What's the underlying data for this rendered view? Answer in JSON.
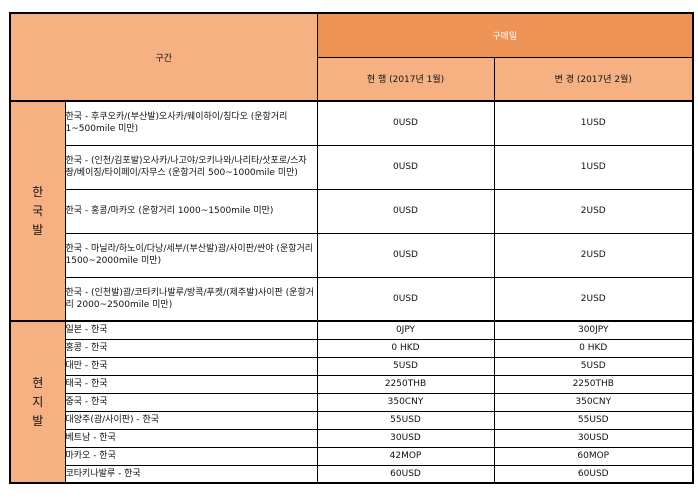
{
  "table": {
    "headers": {
      "section": "구간",
      "purchase_date": "구매일",
      "current": "현 행 (2017년 1월)",
      "changed": "변 경 (2017년 2월)"
    },
    "groups": [
      {
        "label_chars": [
          "한",
          "국",
          "발"
        ],
        "rows": [
          {
            "route": "한국 - 후쿠오카/(부산발)오사카/웨이하이/칭다오 (운항거리 1~500mile 미만)",
            "current": "0USD",
            "changed": "1USD"
          },
          {
            "route": "한국 - (인천/김포발)오사카/나고야/오키나와/나리타/삿포로/스자좡/베이징/타이페이/자무스 (운항거리 500~1000mile 미만)",
            "current": "0USD",
            "changed": "1USD"
          },
          {
            "route": "한국 - 홍콩/마카오 (운항거리 1000~1500mile 미만)",
            "current": "0USD",
            "changed": "2USD"
          },
          {
            "route": "한국 - 마닐라/하노이/다낭/세부/(부산발)괌/사이판/싼야 (운항거리 1500~2000mile 미만)",
            "current": "0USD",
            "changed": "2USD"
          },
          {
            "route": "한국 - (인천발)괌/코타키나발루/방콕/푸켓/(제주발)사이판 (운항거리 2000~2500mile 미만)",
            "current": "0USD",
            "changed": "2USD"
          }
        ]
      },
      {
        "label_chars": [
          "현",
          "지",
          "발"
        ],
        "rows": [
          {
            "route": "일본 - 한국",
            "current": "0JPY",
            "changed": "300JPY"
          },
          {
            "route": "홍콩 - 한국",
            "current": "0 HKD",
            "changed": "0 HKD"
          },
          {
            "route": "대만 - 한국",
            "current": "5USD",
            "changed": "5USD"
          },
          {
            "route": "태국 - 한국",
            "current": "2250THB",
            "changed": "2250THB"
          },
          {
            "route": "중국 - 한국",
            "current": "350CNY",
            "changed": "350CNY"
          },
          {
            "route": "대양주(괌/사이판) - 한국",
            "current": "55USD",
            "changed": "55USD"
          },
          {
            "route": "베트남 - 한국",
            "current": "30USD",
            "changed": "30USD"
          },
          {
            "route": "마카오 - 한국",
            "current": "42MOP",
            "changed": "60MOP"
          },
          {
            "route": "코타키나발루 - 한국",
            "current": "60USD",
            "changed": "60USD"
          }
        ]
      }
    ]
  },
  "colors": {
    "header_fill": "#f6b183",
    "header_top_fill": "#ec9355",
    "group_fill": "#f6b183",
    "border": "#000000"
  }
}
